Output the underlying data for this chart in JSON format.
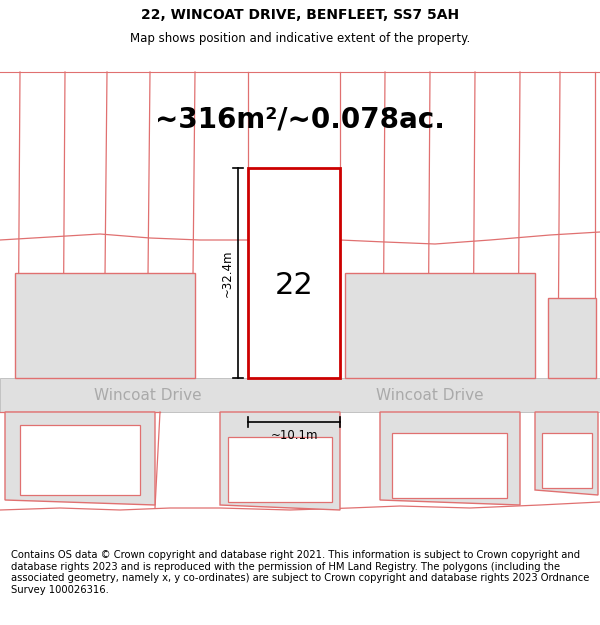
{
  "title": "22, WINCOAT DRIVE, BENFLEET, SS7 5AH",
  "subtitle": "Map shows position and indicative extent of the property.",
  "area_text": "~316m²/~0.078ac.",
  "house_number": "22",
  "dim_height": "~32.4m",
  "dim_width": "~10.1m",
  "street_left": "Wincoat Drive",
  "street_right": "Wincoat Drive",
  "footer": "Contains OS data © Crown copyright and database right 2021. This information is subject to Crown copyright and database rights 2023 and is reproduced with the permission of HM Land Registry. The polygons (including the associated geometry, namely x, y co-ordinates) are subject to Crown copyright and database rights 2023 Ordnance Survey 100026316.",
  "bg_color": "#ffffff",
  "map_bg": "#ffffff",
  "plot_border_color": "#cc0000",
  "other_border_color": "#e07070",
  "road_fill": "#e0e0e0",
  "building_fill": "#e0e0e0",
  "title_fontsize": 10,
  "subtitle_fontsize": 8.5,
  "area_fontsize": 20,
  "footer_fontsize": 7.2,
  "street_fontsize": 11
}
